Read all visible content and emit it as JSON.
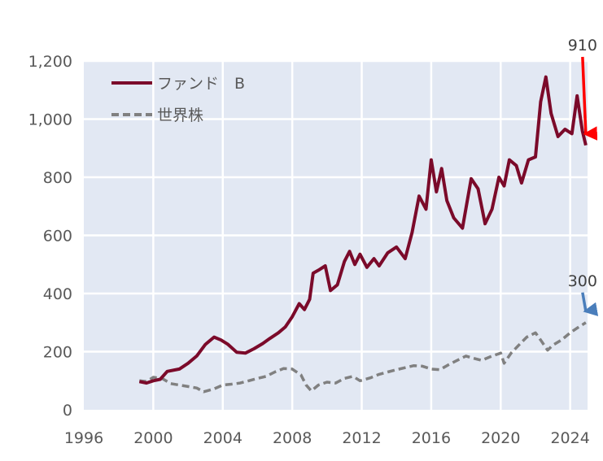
{
  "chart_data": {
    "type": "line",
    "xlim": [
      1996,
      2025
    ],
    "ylim": [
      0,
      1200
    ],
    "xticks": [
      "1996",
      "2000",
      "2004",
      "2008",
      "2012",
      "2016",
      "2020",
      "2024"
    ],
    "yticks": [
      "0",
      "200",
      "400",
      "600",
      "800",
      "1,000",
      "1,200"
    ],
    "grid": true,
    "legend_position": "top-left",
    "series": [
      {
        "name": "ファンド　B",
        "color": "#7b0a2a",
        "style": "solid",
        "points": [
          [
            1999.2,
            97
          ],
          [
            1999.6,
            92
          ],
          [
            2000.0,
            100
          ],
          [
            2000.4,
            105
          ],
          [
            2000.8,
            132
          ],
          [
            2001.5,
            140
          ],
          [
            2002.0,
            160
          ],
          [
            2002.5,
            185
          ],
          [
            2003.0,
            225
          ],
          [
            2003.5,
            250
          ],
          [
            2003.9,
            240
          ],
          [
            2004.3,
            225
          ],
          [
            2004.8,
            198
          ],
          [
            2005.3,
            195
          ],
          [
            2005.8,
            210
          ],
          [
            2006.3,
            228
          ],
          [
            2006.7,
            245
          ],
          [
            2007.2,
            265
          ],
          [
            2007.6,
            285
          ],
          [
            2008.0,
            320
          ],
          [
            2008.4,
            365
          ],
          [
            2008.7,
            345
          ],
          [
            2009.0,
            380
          ],
          [
            2009.2,
            470
          ],
          [
            2009.5,
            480
          ],
          [
            2009.9,
            495
          ],
          [
            2010.2,
            410
          ],
          [
            2010.6,
            430
          ],
          [
            2011.0,
            510
          ],
          [
            2011.3,
            545
          ],
          [
            2011.6,
            500
          ],
          [
            2011.9,
            535
          ],
          [
            2012.3,
            490
          ],
          [
            2012.7,
            520
          ],
          [
            2013.0,
            495
          ],
          [
            2013.5,
            540
          ],
          [
            2014.0,
            560
          ],
          [
            2014.5,
            520
          ],
          [
            2014.9,
            610
          ],
          [
            2015.3,
            735
          ],
          [
            2015.7,
            690
          ],
          [
            2016.0,
            860
          ],
          [
            2016.3,
            750
          ],
          [
            2016.6,
            830
          ],
          [
            2016.9,
            720
          ],
          [
            2017.3,
            660
          ],
          [
            2017.8,
            625
          ],
          [
            2018.3,
            795
          ],
          [
            2018.7,
            760
          ],
          [
            2019.1,
            640
          ],
          [
            2019.5,
            690
          ],
          [
            2019.9,
            800
          ],
          [
            2020.2,
            770
          ],
          [
            2020.5,
            860
          ],
          [
            2020.9,
            840
          ],
          [
            2021.2,
            780
          ],
          [
            2021.6,
            860
          ],
          [
            2022.0,
            870
          ],
          [
            2022.3,
            1060
          ],
          [
            2022.6,
            1145
          ],
          [
            2022.9,
            1020
          ],
          [
            2023.3,
            940
          ],
          [
            2023.7,
            965
          ],
          [
            2024.1,
            950
          ],
          [
            2024.4,
            1080
          ],
          [
            2024.7,
            960
          ],
          [
            2024.9,
            910
          ]
        ]
      },
      {
        "name": "世界株",
        "color": "#808080",
        "style": "dashed",
        "points": [
          [
            1999.2,
            100
          ],
          [
            1999.6,
            97
          ],
          [
            2000.0,
            112
          ],
          [
            2000.5,
            108
          ],
          [
            2001.0,
            90
          ],
          [
            2001.5,
            85
          ],
          [
            2002.0,
            80
          ],
          [
            2002.5,
            75
          ],
          [
            2002.9,
            62
          ],
          [
            2003.5,
            72
          ],
          [
            2004.0,
            85
          ],
          [
            2004.5,
            88
          ],
          [
            2005.0,
            92
          ],
          [
            2005.5,
            100
          ],
          [
            2006.0,
            108
          ],
          [
            2006.5,
            115
          ],
          [
            2007.0,
            130
          ],
          [
            2007.5,
            142
          ],
          [
            2008.0,
            140
          ],
          [
            2008.5,
            120
          ],
          [
            2008.8,
            85
          ],
          [
            2009.1,
            65
          ],
          [
            2009.5,
            85
          ],
          [
            2010.0,
            95
          ],
          [
            2010.5,
            92
          ],
          [
            2011.0,
            108
          ],
          [
            2011.5,
            115
          ],
          [
            2011.9,
            100
          ],
          [
            2012.5,
            110
          ],
          [
            2013.0,
            122
          ],
          [
            2013.5,
            130
          ],
          [
            2014.0,
            138
          ],
          [
            2014.5,
            145
          ],
          [
            2015.0,
            152
          ],
          [
            2015.5,
            150
          ],
          [
            2016.0,
            140
          ],
          [
            2016.5,
            138
          ],
          [
            2017.0,
            155
          ],
          [
            2017.5,
            170
          ],
          [
            2018.0,
            185
          ],
          [
            2018.4,
            178
          ],
          [
            2018.9,
            170
          ],
          [
            2019.5,
            185
          ],
          [
            2020.0,
            195
          ],
          [
            2020.2,
            160
          ],
          [
            2020.6,
            195
          ],
          [
            2021.0,
            220
          ],
          [
            2021.5,
            250
          ],
          [
            2022.0,
            265
          ],
          [
            2022.3,
            240
          ],
          [
            2022.7,
            205
          ],
          [
            2023.0,
            222
          ],
          [
            2023.5,
            240
          ],
          [
            2024.0,
            265
          ],
          [
            2024.5,
            285
          ],
          [
            2024.9,
            300
          ]
        ]
      }
    ],
    "annotations": [
      {
        "label": "910",
        "x": 2024.9,
        "y": 910,
        "color": "#ff0000"
      },
      {
        "label": "300",
        "x": 2024.9,
        "y": 300,
        "color": "#4a7ebb"
      }
    ]
  }
}
